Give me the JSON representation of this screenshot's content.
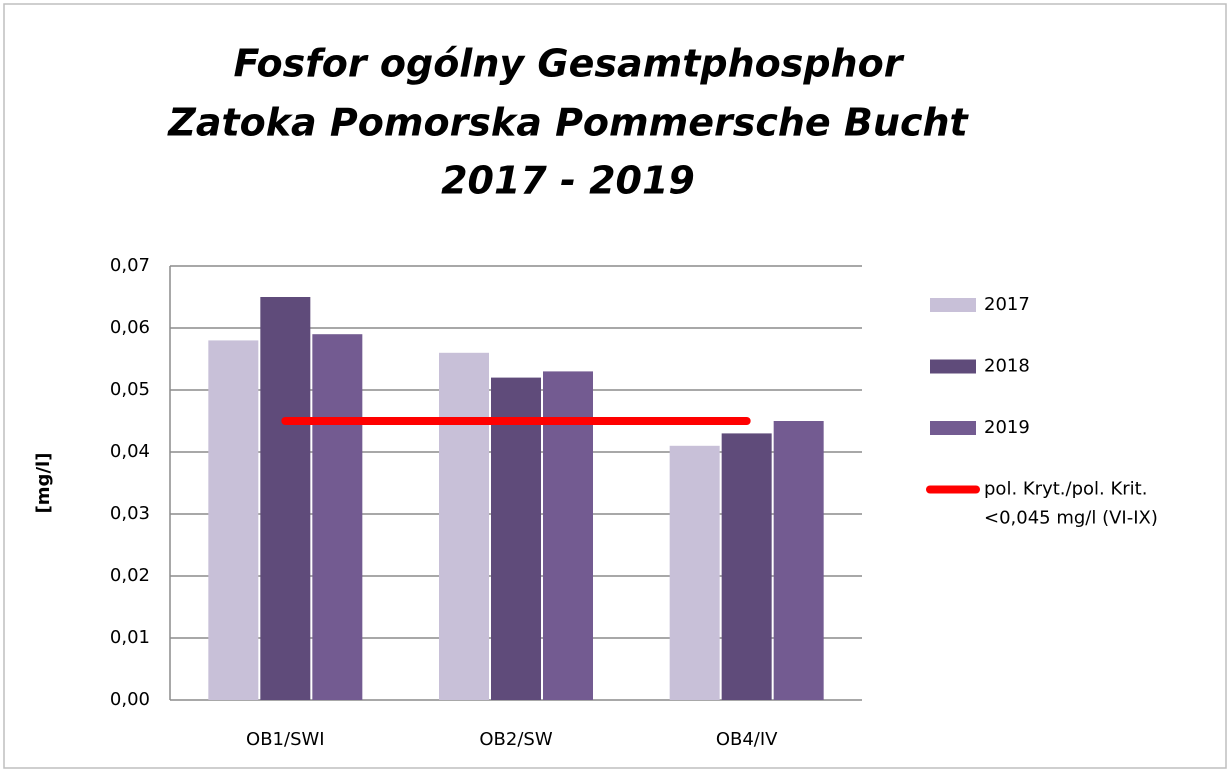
{
  "chart_data": {
    "type": "bar",
    "title": [
      "Fosfor ogólny   Gesamtphosphor",
      "Zatoka Pomorska  Pommersche Bucht",
      "2017 - 2019"
    ],
    "ylabel": "[mg/l]",
    "categories": [
      "OB1/SWI",
      "OB2/SW",
      "OB4/IV"
    ],
    "series": [
      {
        "name": "2017",
        "color": "#c8c0d8",
        "values": [
          0.058,
          0.056,
          0.041
        ]
      },
      {
        "name": "2018",
        "color": "#5f4b7a",
        "values": [
          0.065,
          0.052,
          0.043
        ]
      },
      {
        "name": "2019",
        "color": "#735b91",
        "values": [
          0.059,
          0.053,
          0.045
        ]
      },
      {
        "name": [
          "pol. Kryt./pol. Krit.",
          "<0,045 mg/l (VI-IX)"
        ],
        "type": "line",
        "color": "#ff0000",
        "values": [
          0.045,
          0.045,
          0.045
        ]
      }
    ],
    "ylim": [
      0,
      0.07
    ],
    "yticks": [
      {
        "value": 0,
        "label": "0,00"
      },
      {
        "value": 0.01,
        "label": "0,01"
      },
      {
        "value": 0.02,
        "label": "0,02"
      },
      {
        "value": 0.03,
        "label": "0,03"
      },
      {
        "value": 0.04,
        "label": "0,04"
      },
      {
        "value": 0.05,
        "label": "0,05"
      },
      {
        "value": 0.06,
        "label": "0,06"
      },
      {
        "value": 0.07,
        "label": "0,07"
      }
    ],
    "grid": true,
    "legend": "right"
  }
}
